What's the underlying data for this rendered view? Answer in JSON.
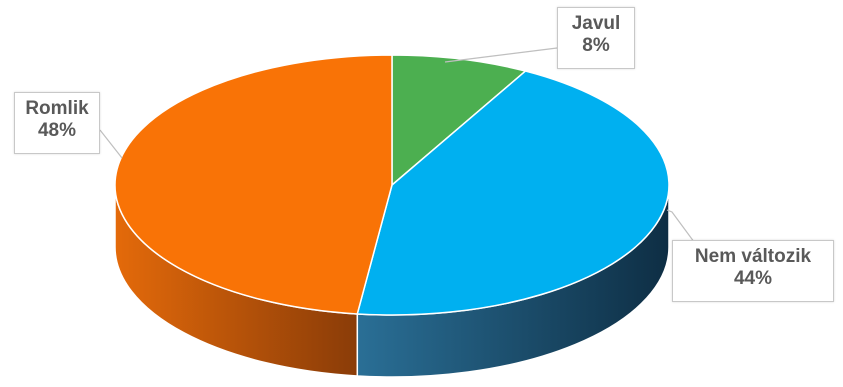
{
  "chart_data": {
    "type": "pie",
    "style": "3d",
    "slices": [
      {
        "label": "Javul",
        "value": 8,
        "value_label": "8%",
        "color": "#4CAF50",
        "side_color": "#2e7d32"
      },
      {
        "label": "Nem változik",
        "value": 44,
        "value_label": "44%",
        "color": "#00B0F0",
        "side_color": "#1a4a66"
      },
      {
        "label": "Romlik",
        "value": 48,
        "value_label": "48%",
        "color": "#F97306",
        "side_color": "#c2560a"
      }
    ],
    "title": "",
    "legend": "none",
    "data_labels": "callouts"
  }
}
